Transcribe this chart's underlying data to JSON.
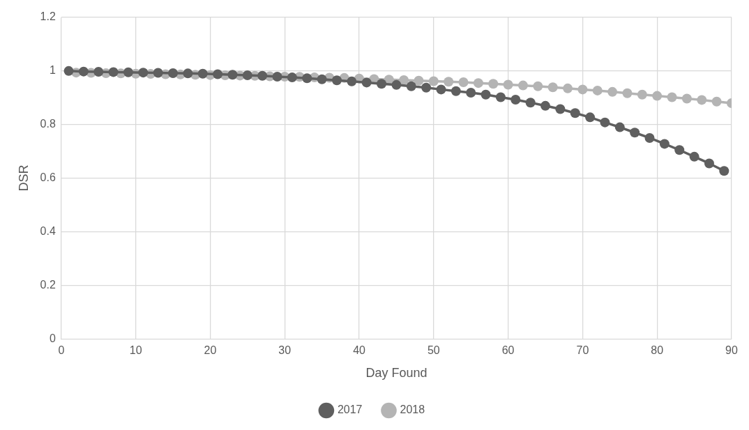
{
  "chart_data": {
    "type": "line",
    "xlabel": "Day Found",
    "ylabel": "DSR",
    "xlim": [
      0,
      90
    ],
    "xticks": [
      0,
      10,
      20,
      30,
      40,
      50,
      60,
      70,
      80,
      90
    ],
    "ylim": [
      0,
      1.2
    ],
    "yticks": [
      0,
      0.2,
      0.4,
      0.6,
      0.8,
      1,
      1.2
    ],
    "grid": true,
    "legend": "bottom",
    "marker": "circle",
    "line_style": "solid",
    "series": [
      {
        "name": "2017",
        "color": "#5f5f5f",
        "x": [
          1,
          3,
          5,
          7,
          9,
          11,
          13,
          15,
          17,
          19,
          21,
          23,
          25,
          27,
          29,
          31,
          33,
          35,
          37,
          39,
          41,
          43,
          45,
          47,
          49,
          51,
          53,
          55,
          57,
          59,
          61,
          63,
          65,
          67,
          69,
          71,
          73,
          75,
          77,
          79,
          81,
          83,
          85,
          87,
          89
        ],
        "values": [
          1.0,
          0.998,
          0.997,
          0.996,
          0.995,
          0.994,
          0.993,
          0.992,
          0.991,
          0.99,
          0.988,
          0.986,
          0.984,
          0.982,
          0.979,
          0.976,
          0.973,
          0.969,
          0.965,
          0.961,
          0.957,
          0.952,
          0.948,
          0.943,
          0.938,
          0.931,
          0.925,
          0.919,
          0.912,
          0.902,
          0.893,
          0.882,
          0.87,
          0.858,
          0.843,
          0.827,
          0.808,
          0.79,
          0.77,
          0.75,
          0.728,
          0.705,
          0.68,
          0.655,
          0.627
        ]
      },
      {
        "name": "2018",
        "color": "#b4b4b4",
        "x": [
          2,
          4,
          6,
          8,
          10,
          12,
          14,
          16,
          18,
          20,
          22,
          24,
          26,
          28,
          30,
          32,
          34,
          36,
          38,
          40,
          42,
          44,
          46,
          48,
          50,
          52,
          54,
          56,
          58,
          60,
          62,
          64,
          66,
          68,
          70,
          72,
          74,
          76,
          78,
          80,
          82,
          84,
          86,
          88,
          90
        ],
        "values": [
          0.994,
          0.993,
          0.992,
          0.991,
          0.99,
          0.989,
          0.988,
          0.987,
          0.986,
          0.985,
          0.984,
          0.983,
          0.982,
          0.98,
          0.979,
          0.978,
          0.976,
          0.975,
          0.974,
          0.972,
          0.97,
          0.968,
          0.966,
          0.964,
          0.962,
          0.96,
          0.958,
          0.955,
          0.952,
          0.949,
          0.946,
          0.943,
          0.939,
          0.935,
          0.931,
          0.927,
          0.922,
          0.917,
          0.912,
          0.907,
          0.902,
          0.897,
          0.892,
          0.886,
          0.88
        ]
      }
    ]
  }
}
